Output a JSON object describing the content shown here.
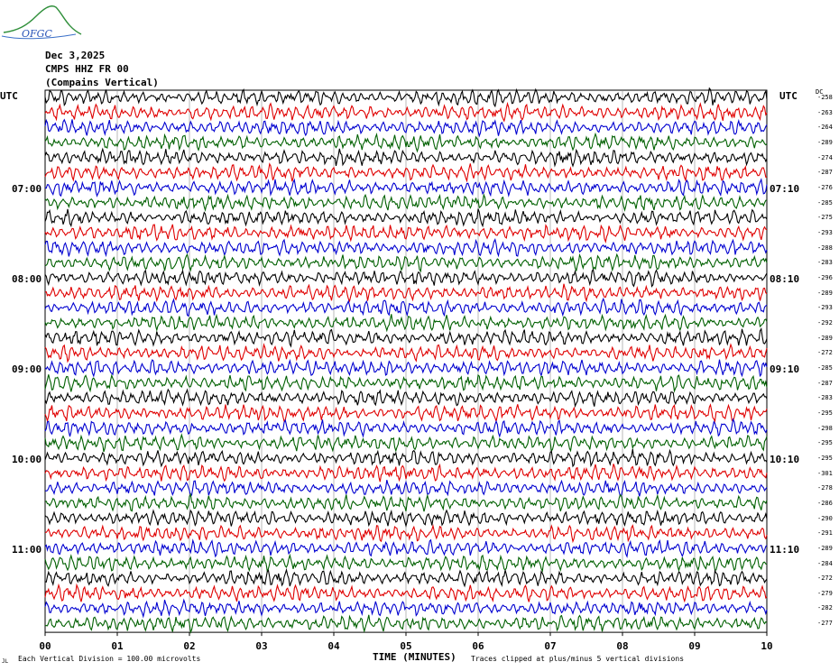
{
  "logo": {
    "text": "OFGC",
    "name": "ofgc-logo"
  },
  "header": {
    "date": "Dec 3,2025",
    "station": "CMPS HHZ FR 00",
    "site": "(Compains Vertical)"
  },
  "utc_left_label": "UTC",
  "utc_right_label": "UTC",
  "dc_header": "DC",
  "left_hour_labels": [
    "07:00",
    "08:00",
    "09:00",
    "10:00",
    "11:00"
  ],
  "right_hour_labels": [
    "07:10",
    "08:10",
    "09:10",
    "10:10",
    "11:10"
  ],
  "footer": {
    "vertical_division": "Each Vertical Division =  100.00 microvolts",
    "x_axis_title": "TIME (MINUTES)",
    "clip_note": "Traces clipped at plus/minus 5 vertical divisions",
    "corner_mark": "JL"
  },
  "chart_data": {
    "type": "line",
    "title": "",
    "xlabel": "TIME (MINUTES)",
    "ylabel": "",
    "x_ticks": [
      "00",
      "01",
      "02",
      "03",
      "04",
      "05",
      "06",
      "07",
      "08",
      "09",
      "10"
    ],
    "xlim": [
      0,
      10
    ],
    "trace_count": 36,
    "trace_colors": [
      "#000000",
      "#e00000",
      "#0000d0",
      "#006000"
    ],
    "dc_offsets": [
      -258,
      -263,
      -264,
      -289,
      -274,
      -287,
      -276,
      -285,
      -275,
      -293,
      -288,
      -283,
      -296,
      -289,
      -293,
      -292,
      -289,
      -272,
      -285,
      -287,
      -283,
      -295,
      -298,
      -295,
      -295,
      -301,
      -278,
      -286,
      -290,
      -291,
      -289,
      -284,
      -272,
      -279,
      -282,
      -277
    ],
    "grid": true
  }
}
